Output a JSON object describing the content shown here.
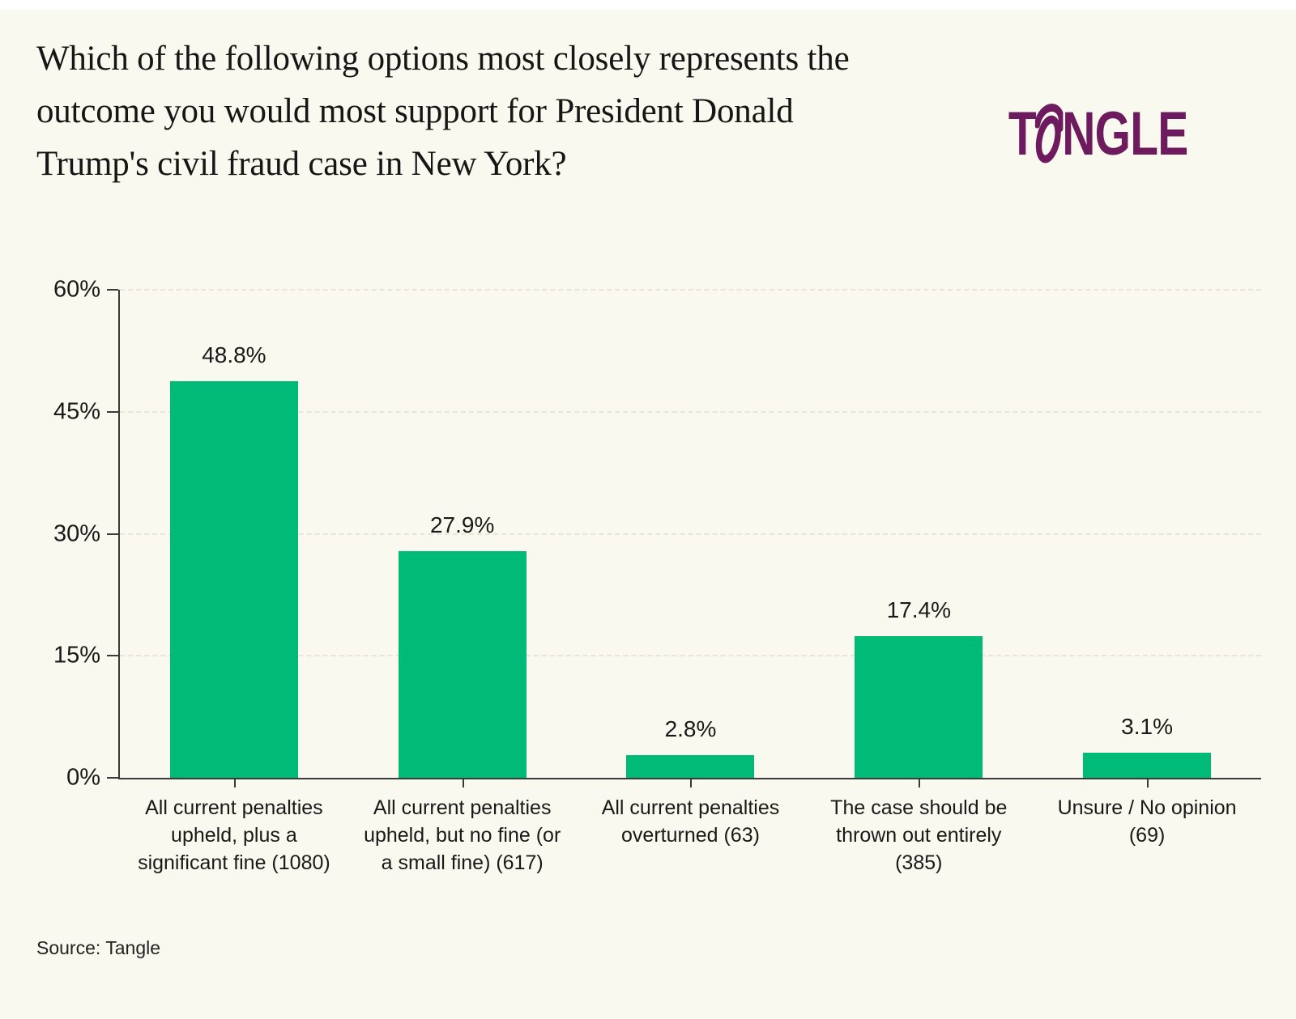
{
  "header": {
    "title": "Which of the following options most closely represents the outcome you would most support for President Donald Trump's civil fraud case in New York?",
    "logo": {
      "text": "TANGLE",
      "prefix": "T",
      "suffix": "NGLE",
      "color": "#6E1A5F"
    }
  },
  "chart_data": {
    "type": "bar",
    "title": "Which of the following options most closely represents the outcome you would most support for President Donald Trump's civil fraud case in New York?",
    "categories": [
      "All current penalties upheld, plus a significant fine (1080)",
      "All current penalties upheld, but no fine (or a small fine) (617)",
      "All current penalties overturned (63)",
      "The case should be thrown out entirely (385)",
      "Unsure / No opinion (69)"
    ],
    "values": [
      48.8,
      27.9,
      2.8,
      17.4,
      3.1
    ],
    "value_labels": [
      "48.8%",
      "27.9%",
      "2.8%",
      "17.4%",
      "3.1%"
    ],
    "respondent_counts": [
      1080,
      617,
      63,
      385,
      69
    ],
    "y_ticks": [
      0,
      15,
      30,
      45,
      60
    ],
    "y_tick_labels": [
      "0%",
      "15%",
      "30%",
      "45%",
      "60%"
    ],
    "ylim": [
      0,
      60
    ],
    "xlabel": "",
    "ylabel": "",
    "bar_color": "#00BA78",
    "grid": "horizontal-dashed",
    "legend": "none"
  },
  "footer": {
    "source": "Source: Tangle"
  },
  "colors": {
    "background": "#FAF9EF",
    "bar": "#00BA78",
    "logo": "#6E1A5F",
    "gridline": "#e9e6d9",
    "axis": "#3a3a3a",
    "text": "#191919"
  }
}
